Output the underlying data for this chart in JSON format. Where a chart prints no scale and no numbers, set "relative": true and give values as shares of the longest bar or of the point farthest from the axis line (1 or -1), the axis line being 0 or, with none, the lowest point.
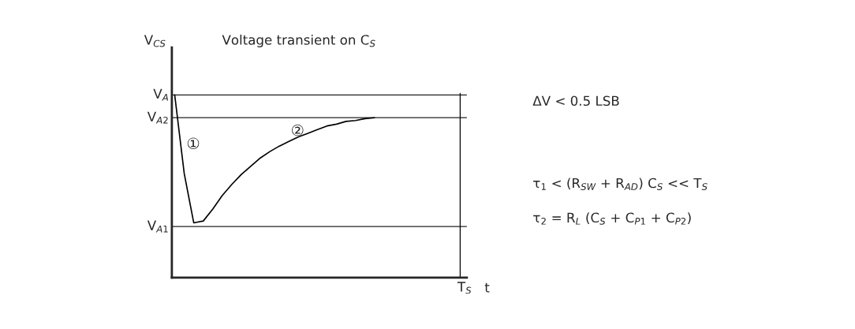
{
  "chart_data": {
    "type": "line",
    "title": "Voltage transient on C$_{S}$",
    "xlabel": "t",
    "ylabel": "V$_{CS}$",
    "relative": true,
    "categories": [
      null,
      null,
      null,
      null,
      null,
      null,
      null,
      null,
      null,
      null,
      null,
      null,
      null,
      null,
      null,
      null,
      null,
      null,
      null,
      null,
      null,
      null,
      null,
      null,
      null,
      null,
      null,
      null,
      null,
      null,
      null
    ],
    "series": [
      {
        "color": "#000000",
        "values": [
          1.0,
          0.57,
          0.3,
          0.31,
          0.375,
          0.45,
          0.51,
          0.565,
          0.61,
          0.655,
          0.69,
          0.72,
          0.745,
          0.77,
          0.79,
          0.81,
          0.83,
          0.84,
          0.855,
          0.86,
          0.87,
          0.875,
          null,
          null,
          null,
          null,
          null,
          null,
          null,
          null,
          null
        ]
      }
    ],
    "ref_lines": [
      {
        "axis": "y",
        "value": 1.0,
        "label": "V$_{A}$"
      },
      {
        "axis": "y",
        "value": 0.875,
        "label": "V$_{A2}$"
      },
      {
        "axis": "y",
        "value": 0.28,
        "label": "V$_{A1}$"
      }
    ],
    "annotations": [
      "T$_{S}$",
      "①",
      "②",
      "ΔV < 0.5 LSB",
      "τ$_{1}$ < (R$_{SW}$ + R$_{AD}$) C$_{S}$ << T$_{S}$",
      "τ$_{2}$ = R$_{L}$ (C$_{S}$ + C$_{P1}$ + C$_{P2}$)"
    ],
    "grid": false,
    "legend": false
  }
}
